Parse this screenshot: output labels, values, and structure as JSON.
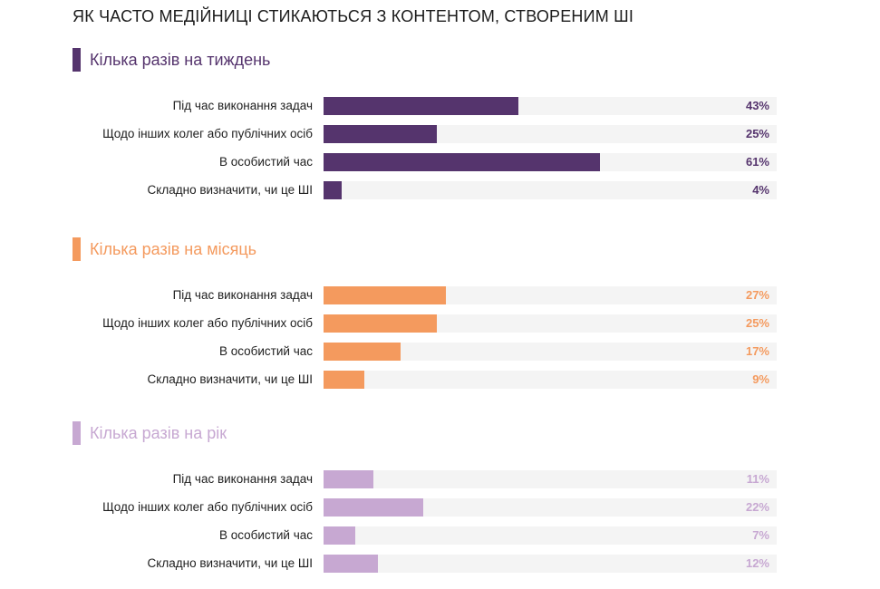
{
  "chart_data": {
    "type": "bar",
    "orientation": "horizontal",
    "title": "ЯК ЧАСТО МЕДІЙНИЦІ СТИКАЮТЬСЯ З КОНТЕНТОМ, СТВОРЕНИМ ШІ",
    "categories": [
      "Під час виконання задач",
      "Щодо інших колег або публічних осіб",
      "В особистий час",
      "Складно визначити, чи це ШІ"
    ],
    "xlim": [
      0,
      100
    ],
    "unit": "%",
    "series": [
      {
        "name": "Кілька разів на тиждень",
        "color": "#55346d",
        "values": [
          43,
          25,
          61,
          4
        ]
      },
      {
        "name": "Кілька разів на місяць",
        "color": "#f49a5e",
        "values": [
          27,
          25,
          17,
          9
        ]
      },
      {
        "name": "Кілька разів на рік",
        "color": "#c7a8d2",
        "values": [
          11,
          22,
          7,
          12
        ]
      }
    ]
  }
}
